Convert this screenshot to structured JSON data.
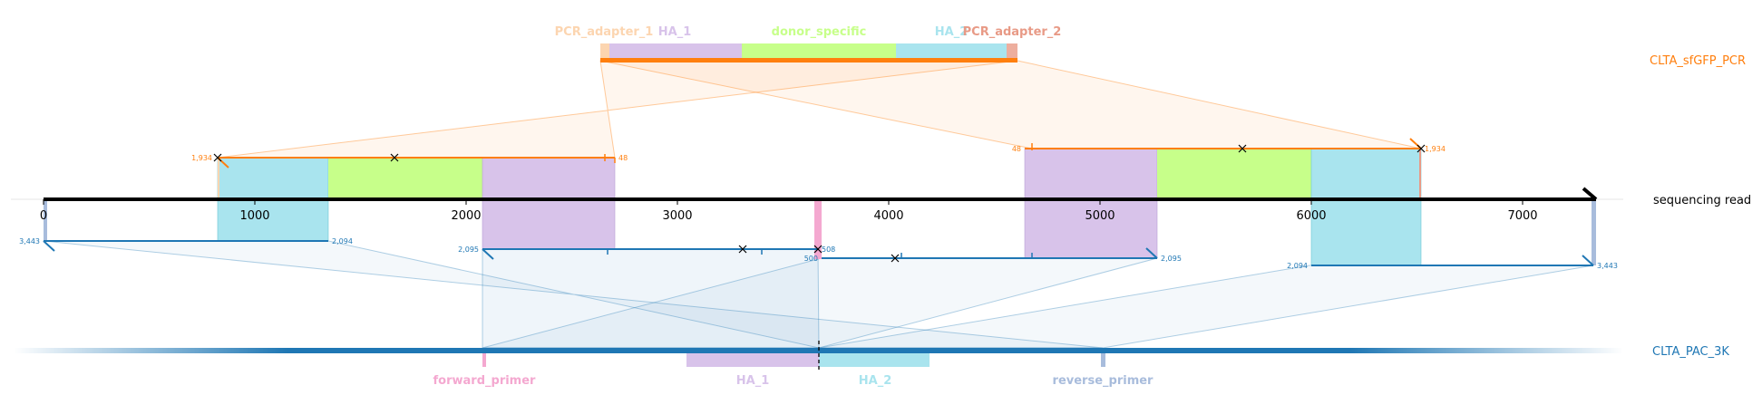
{
  "colors": {
    "orange": "#ff7f0e",
    "blue": "#1f77b4",
    "purple": "#d8c3ea",
    "green": "#c7ff8a",
    "cyan": "#a9e4ee",
    "pink": "#f4a8d0",
    "lightblue": "#a8bcdc",
    "adapter": "#fcd5b0",
    "adapter2": "#e89a86"
  },
  "pcr_product": {
    "name": "CLTA_sfGFP_PCR",
    "features": [
      "PCR_adapter_1",
      "HA_1",
      "donor_specific",
      "HA_2",
      "PCR_adapter_2"
    ]
  },
  "read": {
    "name": "sequencing read",
    "ticks": [
      "0",
      "1000",
      "2000",
      "3000",
      "4000",
      "5000",
      "6000",
      "7000"
    ]
  },
  "alignments": {
    "pcr_fwd": {
      "start": "1,934",
      "end": "48"
    },
    "pcr_rev": {
      "start": "48",
      "end": "1,934"
    },
    "ref_a": {
      "start": "3,443",
      "end": "2,094"
    },
    "ref_b": {
      "start": "2,095",
      "end": "508"
    },
    "ref_c": {
      "start": "500",
      "end": "2,095"
    },
    "ref_d": {
      "start": "2,094",
      "end": "3,443"
    }
  },
  "reference": {
    "name": "CLTA_PAC_3K",
    "features": [
      "forward_primer",
      "HA_1",
      "HA_2",
      "reverse_primer"
    ]
  }
}
